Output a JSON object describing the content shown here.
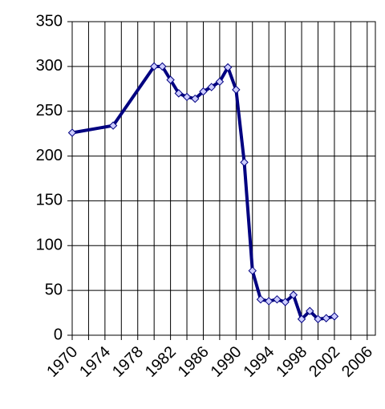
{
  "chart_data": {
    "type": "line",
    "x": [
      1970,
      1975,
      1980,
      1981,
      1982,
      1983,
      1984,
      1985,
      1986,
      1987,
      1988,
      1989,
      1990,
      1991,
      1992,
      1993,
      1994,
      1995,
      1996,
      1997,
      1998,
      1999,
      2000,
      2001,
      2002
    ],
    "series": [
      {
        "color": "#000080",
        "marker_fill": "#ccccff",
        "values": [
          226,
          234,
          300,
          300,
          285,
          270,
          266,
          264,
          272,
          277,
          283,
          299,
          274,
          193,
          72,
          40,
          38,
          40,
          37,
          45,
          18,
          27,
          18,
          19,
          21
        ]
      }
    ],
    "xlim": [
      1970,
      2007
    ],
    "xticks": [
      1970,
      1974,
      1978,
      1982,
      1986,
      1990,
      1994,
      1998,
      2002,
      2006
    ],
    "x_minor_ticks": [
      1972,
      1976,
      1980,
      1984,
      1988,
      1992,
      1996,
      2000,
      2004
    ],
    "ylim": [
      0,
      350
    ],
    "yticks": [
      0,
      50,
      100,
      150,
      200,
      250,
      300,
      350
    ],
    "grid": true
  }
}
